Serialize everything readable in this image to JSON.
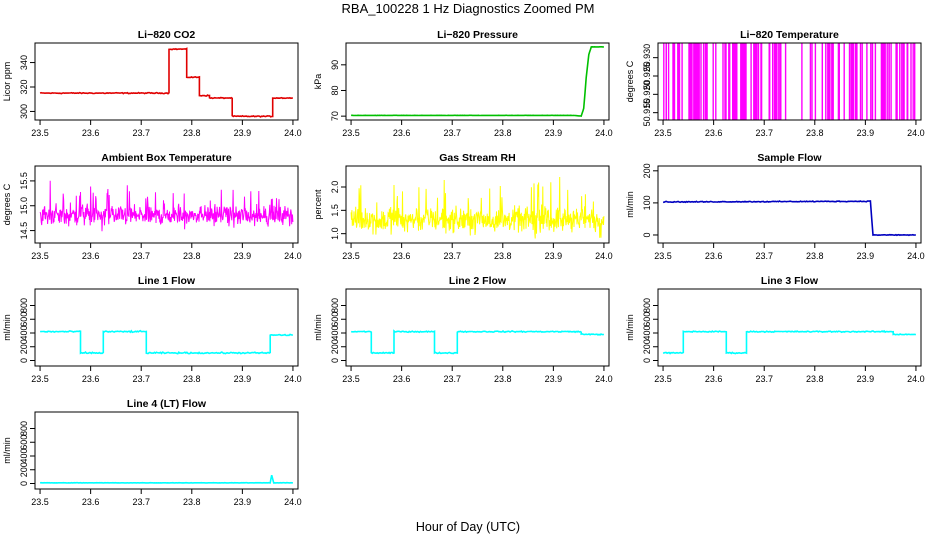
{
  "figure": {
    "title": "RBA_100228  1 Hz Diagnostics Zoomed PM",
    "xlabel": "Hour of Day (UTC)"
  },
  "chart_data": [
    {
      "type": "line",
      "title": "Li−820 CO2",
      "ylabel": "Licor ppm",
      "color": "#e00000",
      "x_ticks": [
        "23.5",
        "23.6",
        "23.7",
        "23.8",
        "23.9",
        "24.0"
      ],
      "xlim": [
        23.49,
        24.01
      ],
      "y_ticks": [
        "300",
        "320",
        "340"
      ],
      "ylim": [
        293,
        356
      ],
      "noise": 0.6,
      "x": [
        23.5,
        23.755,
        23.755,
        23.79,
        23.79,
        23.815,
        23.815,
        23.835,
        23.835,
        23.88,
        23.88,
        23.96,
        23.96,
        24.0
      ],
      "y": [
        315,
        315,
        351,
        351,
        328,
        328,
        313,
        313,
        311,
        311,
        296,
        296,
        311,
        311
      ]
    },
    {
      "type": "line",
      "title": "Li−820 Pressure",
      "ylabel": "kPa",
      "color": "#00c000",
      "x_ticks": [
        "23.5",
        "23.6",
        "23.7",
        "23.8",
        "23.9",
        "24.0"
      ],
      "xlim": [
        23.49,
        24.01
      ],
      "y_ticks": [
        "70",
        "80",
        "90"
      ],
      "ylim": [
        68.5,
        98.5
      ],
      "noise": 0.05,
      "x": [
        23.5,
        23.94,
        23.955,
        23.96,
        23.965,
        23.97,
        23.975,
        24.0
      ],
      "y": [
        70.3,
        70.3,
        70.0,
        73,
        85,
        94,
        97,
        97
      ]
    },
    {
      "type": "spikes",
      "title": "Li−820 Temperature",
      "ylabel": "degrees C",
      "color": "#ff00ff",
      "x_ticks": [
        "23.5",
        "23.6",
        "23.7",
        "23.8",
        "23.9",
        "24.0"
      ],
      "xlim": [
        23.49,
        24.01
      ],
      "y_ticks": [
        "50.915",
        "50.920",
        "50.925",
        "50.930"
      ],
      "ylim": [
        50.913,
        50.934
      ],
      "y_low": 50.913,
      "y_high": 50.934,
      "count": 130
    },
    {
      "type": "noise",
      "title": "Ambient Box Temperature",
      "ylabel": "degrees C",
      "color": "#ff00ff",
      "x_ticks": [
        "23.5",
        "23.6",
        "23.7",
        "23.8",
        "23.9",
        "24.0"
      ],
      "xlim": [
        23.49,
        24.01
      ],
      "y_ticks": [
        "14.5",
        "15.0",
        "15.5"
      ],
      "ylim": [
        14.25,
        15.8
      ],
      "center": 14.8,
      "spread": 0.27,
      "count": 600
    },
    {
      "type": "noise",
      "title": "Gas Stream RH",
      "ylabel": "percent",
      "color": "#ffff00",
      "x_ticks": [
        "23.5",
        "23.6",
        "23.7",
        "23.8",
        "23.9",
        "24.0"
      ],
      "xlim": [
        23.49,
        24.01
      ],
      "y_ticks": [
        "1.0",
        "1.5",
        "2.0"
      ],
      "ylim": [
        0.8,
        2.45
      ],
      "center": 1.3,
      "spread": 0.38,
      "count": 600
    },
    {
      "type": "line",
      "title": "Sample Flow",
      "ylabel": "ml/min",
      "color": "#0000c0",
      "x_ticks": [
        "23.5",
        "23.6",
        "23.7",
        "23.8",
        "23.9",
        "24.0"
      ],
      "xlim": [
        23.49,
        24.01
      ],
      "y_ticks": [
        "0",
        "100",
        "200"
      ],
      "ylim": [
        -25,
        215
      ],
      "noise": 2,
      "x": [
        23.5,
        23.91,
        23.915,
        24.0
      ],
      "y": [
        103,
        105,
        0,
        0
      ]
    },
    {
      "type": "line",
      "title": "Line 1 Flow",
      "ylabel": "ml/min",
      "color": "#00ffff",
      "x_ticks": [
        "23.5",
        "23.6",
        "23.7",
        "23.8",
        "23.9",
        "24.0"
      ],
      "xlim": [
        23.49,
        24.01
      ],
      "y_ticks": [
        "0",
        "200",
        "400",
        "600",
        "800"
      ],
      "ylim": [
        -80,
        1040
      ],
      "noise": 15,
      "x": [
        23.5,
        23.58,
        23.58,
        23.625,
        23.625,
        23.71,
        23.71,
        23.955,
        23.955,
        24.0
      ],
      "y": [
        420,
        420,
        110,
        110,
        420,
        420,
        110,
        110,
        370,
        370
      ]
    },
    {
      "type": "line",
      "title": "Line 2 Flow",
      "ylabel": "ml/min",
      "color": "#00ffff",
      "x_ticks": [
        "23.5",
        "23.6",
        "23.7",
        "23.8",
        "23.9",
        "24.0"
      ],
      "xlim": [
        23.49,
        24.01
      ],
      "y_ticks": [
        "0",
        "200",
        "400",
        "600",
        "800"
      ],
      "ylim": [
        -80,
        1040
      ],
      "noise": 12,
      "x": [
        23.5,
        23.54,
        23.54,
        23.585,
        23.585,
        23.665,
        23.665,
        23.71,
        23.71,
        23.955,
        23.955,
        24.0
      ],
      "y": [
        420,
        420,
        110,
        110,
        420,
        420,
        110,
        110,
        420,
        420,
        380,
        380
      ]
    },
    {
      "type": "line",
      "title": "Line 3 Flow",
      "ylabel": "ml/min",
      "color": "#00ffff",
      "x_ticks": [
        "23.5",
        "23.6",
        "23.7",
        "23.8",
        "23.9",
        "24.0"
      ],
      "xlim": [
        23.49,
        24.01
      ],
      "y_ticks": [
        "0",
        "200",
        "400",
        "600",
        "800"
      ],
      "ylim": [
        -80,
        1040
      ],
      "noise": 12,
      "x": [
        23.5,
        23.54,
        23.54,
        23.625,
        23.625,
        23.665,
        23.665,
        23.955,
        23.955,
        24.0
      ],
      "y": [
        110,
        110,
        420,
        420,
        110,
        110,
        420,
        420,
        380,
        380
      ]
    },
    {
      "type": "line",
      "title": "Line 4 (LT) Flow",
      "ylabel": "ml/min",
      "color": "#00ffff",
      "x_ticks": [
        "23.5",
        "23.6",
        "23.7",
        "23.8",
        "23.9",
        "24.0"
      ],
      "xlim": [
        23.49,
        24.01
      ],
      "y_ticks": [
        "0",
        "200",
        "400",
        "600",
        "800"
      ],
      "ylim": [
        -80,
        1040
      ],
      "noise": 3,
      "x": [
        23.5,
        23.955,
        23.958,
        23.962,
        24.0
      ],
      "y": [
        10,
        10,
        120,
        10,
        10
      ]
    }
  ]
}
